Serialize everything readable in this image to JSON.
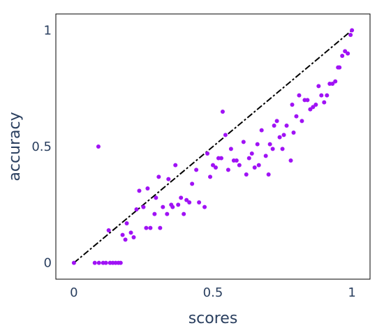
{
  "chart_data": {
    "type": "scatter",
    "xlabel": "scores",
    "ylabel": "accuracy",
    "xlim": [
      -0.065,
      1.065
    ],
    "ylim": [
      -0.07,
      1.07
    ],
    "x_ticks": [
      {
        "value": 0,
        "label": "0"
      },
      {
        "value": 0.5,
        "label": "0.5"
      },
      {
        "value": 1,
        "label": "1"
      }
    ],
    "y_ticks": [
      {
        "value": 0,
        "label": "0"
      },
      {
        "value": 0.5,
        "label": "0.5"
      },
      {
        "value": 1,
        "label": "1"
      }
    ],
    "grid": false,
    "colors": {
      "points": "#a012f5",
      "reference_line": "#000000",
      "frame": "#000000",
      "text": "#2a3f5f"
    },
    "reference_line": {
      "style": "dash-dot",
      "x": [
        0,
        1
      ],
      "y": [
        0,
        1
      ]
    },
    "series": [
      {
        "x": [
          0,
          0.075,
          0.09,
          0.105,
          0.115,
          0.13,
          0.14,
          0.15,
          0.16,
          0.168,
          0.088,
          0.125,
          0.175,
          0.185,
          0.19,
          0.205,
          0.215,
          0.225,
          0.235,
          0.25,
          0.26,
          0.265,
          0.275,
          0.29,
          0.295,
          0.305,
          0.31,
          0.32,
          0.335,
          0.34,
          0.35,
          0.355,
          0.365,
          0.375,
          0.385,
          0.395,
          0.405,
          0.415,
          0.425,
          0.44,
          0.45,
          0.47,
          0.48,
          0.49,
          0.5,
          0.51,
          0.52,
          0.53,
          0.535,
          0.545,
          0.555,
          0.565,
          0.575,
          0.585,
          0.595,
          0.61,
          0.62,
          0.63,
          0.64,
          0.65,
          0.66,
          0.665,
          0.675,
          0.69,
          0.7,
          0.705,
          0.715,
          0.72,
          0.73,
          0.74,
          0.75,
          0.755,
          0.765,
          0.78,
          0.785,
          0.79,
          0.8,
          0.81,
          0.82,
          0.83,
          0.84,
          0.85,
          0.86,
          0.87,
          0.88,
          0.89,
          0.9,
          0.91,
          0.92,
          0.93,
          0.94,
          0.95,
          0.955,
          0.965,
          0.975,
          0.985,
          0.995,
          1
        ],
        "y": [
          0,
          0,
          0,
          0,
          0,
          0,
          0,
          0,
          0,
          0,
          0.5,
          0.14,
          0.12,
          0.1,
          0.17,
          0.13,
          0.11,
          0.23,
          0.31,
          0.24,
          0.15,
          0.32,
          0.15,
          0.21,
          0.28,
          0.37,
          0.15,
          0.24,
          0.21,
          0.36,
          0.25,
          0.24,
          0.42,
          0.25,
          0.28,
          0.21,
          0.27,
          0.26,
          0.34,
          0.4,
          0.26,
          0.24,
          0.47,
          0.37,
          0.42,
          0.41,
          0.45,
          0.45,
          0.65,
          0.55,
          0.4,
          0.49,
          0.44,
          0.44,
          0.42,
          0.52,
          0.38,
          0.45,
          0.47,
          0.41,
          0.51,
          0.42,
          0.57,
          0.46,
          0.38,
          0.51,
          0.49,
          0.59,
          0.61,
          0.54,
          0.49,
          0.55,
          0.59,
          0.44,
          0.68,
          0.56,
          0.63,
          0.72,
          0.61,
          0.7,
          0.7,
          0.66,
          0.67,
          0.68,
          0.76,
          0.72,
          0.69,
          0.72,
          0.77,
          0.77,
          0.78,
          0.84,
          0.84,
          0.89,
          0.91,
          0.9,
          0.98,
          1
        ]
      }
    ]
  }
}
